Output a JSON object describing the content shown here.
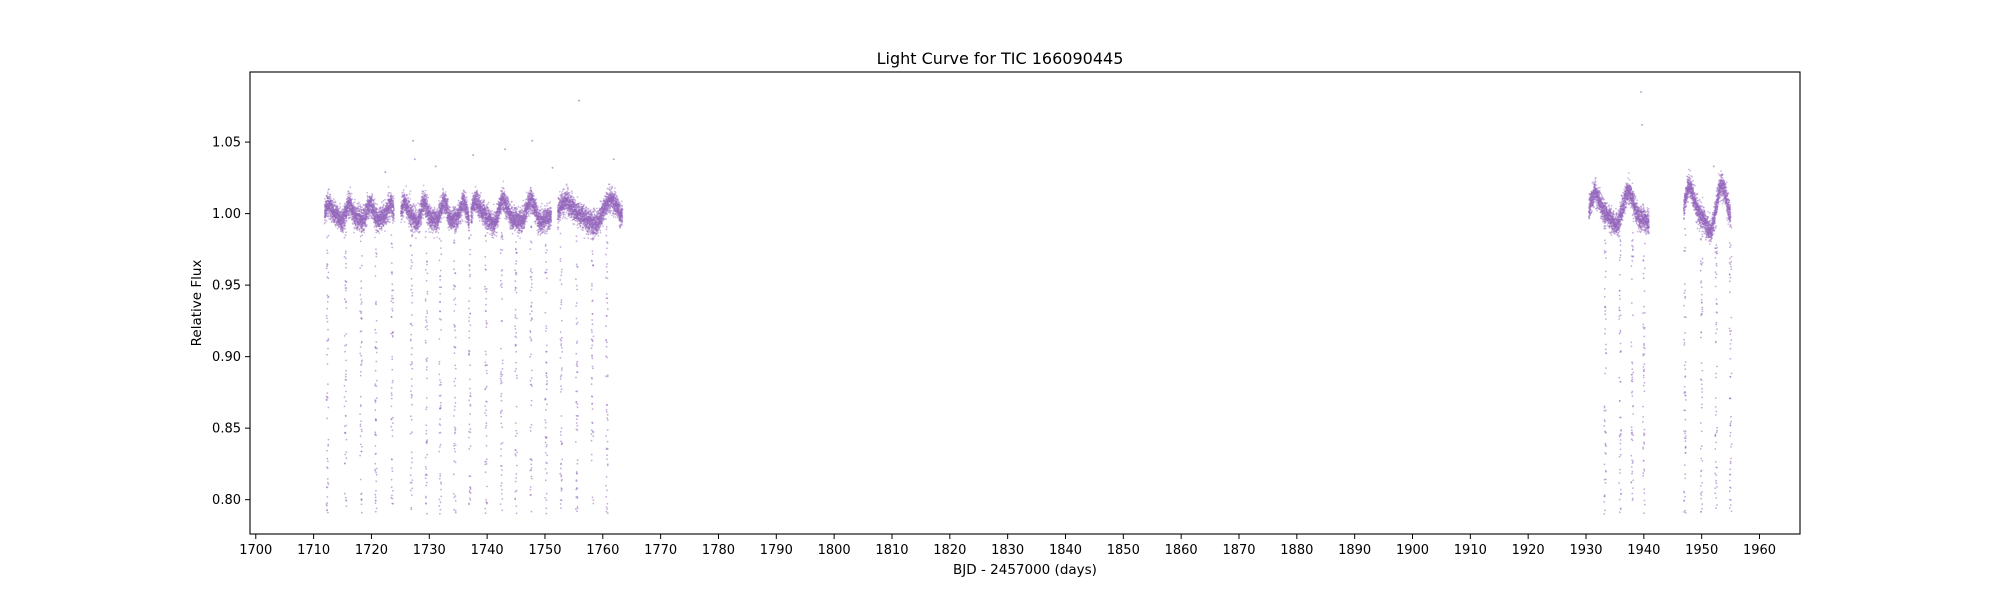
{
  "chart_data": {
    "type": "scatter",
    "title": "Light Curve for TIC 166090445",
    "xlabel": "BJD - 2457000 (days)",
    "ylabel": "Relative Flux",
    "xlim": [
      1699,
      1967
    ],
    "ylim": [
      0.776,
      1.099
    ],
    "x_ticks": [
      1700,
      1710,
      1720,
      1730,
      1740,
      1750,
      1760,
      1770,
      1780,
      1790,
      1800,
      1810,
      1820,
      1830,
      1840,
      1850,
      1860,
      1870,
      1880,
      1890,
      1900,
      1910,
      1920,
      1930,
      1940,
      1950,
      1960
    ],
    "x_tick_labels": [
      "1700",
      "1710",
      "1720",
      "1730",
      "1740",
      "1750",
      "1760",
      "1770",
      "1780",
      "1790",
      "1800",
      "1810",
      "1820",
      "1830",
      "1840",
      "1850",
      "1860",
      "1870",
      "1880",
      "1890",
      "1900",
      "1910",
      "1920",
      "1930",
      "1940",
      "1950",
      "1960"
    ],
    "y_ticks": [
      0.8,
      0.85,
      0.9,
      0.95,
      1.0,
      1.05
    ],
    "y_tick_labels": [
      "0.80",
      "0.85",
      "0.90",
      "0.95",
      "1.00",
      "1.05"
    ],
    "grid": false,
    "legend": "none",
    "marker_color": "#9467bd",
    "segments": [
      {
        "x_start": 1711.9,
        "x_end": 1723.9,
        "baseline": 1.0,
        "amplitude": 0.005,
        "period": 3.5,
        "noise": 0.004
      },
      {
        "x_start": 1725.1,
        "x_end": 1736.9,
        "baseline": 1.0,
        "amplitude": 0.006,
        "period": 3.3,
        "noise": 0.004
      },
      {
        "x_start": 1737.2,
        "x_end": 1751.1,
        "baseline": 1.0,
        "amplitude": 0.007,
        "period": 4.6,
        "noise": 0.004
      },
      {
        "x_start": 1752.2,
        "x_end": 1763.4,
        "baseline": 1.0,
        "amplitude": 0.007,
        "period": 7.5,
        "noise": 0.004
      },
      {
        "x_start": 1930.5,
        "x_end": 1940.9,
        "baseline": 1.002,
        "amplitude": 0.01,
        "period": 5.6,
        "noise": 0.004
      },
      {
        "x_start": 1946.9,
        "x_end": 1955.0,
        "baseline": 1.002,
        "amplitude": 0.014,
        "period": 5.4,
        "noise": 0.004
      }
    ],
    "transit_times": [
      1712.4,
      1715.5,
      1718.2,
      1720.8,
      1723.6,
      1726.9,
      1729.5,
      1731.9,
      1734.4,
      1737.0,
      1739.8,
      1742.5,
      1745.0,
      1747.6,
      1750.2,
      1752.8,
      1755.5,
      1758.2,
      1760.7,
      1933.3,
      1935.9,
      1938.0,
      1940.0,
      1947.1,
      1950.0,
      1952.5,
      1955.0
    ],
    "transit_depth_min": 0.79,
    "outliers": [
      {
        "x": 1727.2,
        "y": 1.051
      },
      {
        "x": 1727.5,
        "y": 1.038
      },
      {
        "x": 1722.4,
        "y": 1.029
      },
      {
        "x": 1731.1,
        "y": 1.033
      },
      {
        "x": 1737.6,
        "y": 1.041
      },
      {
        "x": 1743.1,
        "y": 1.045
      },
      {
        "x": 1747.8,
        "y": 1.051
      },
      {
        "x": 1751.3,
        "y": 1.032
      },
      {
        "x": 1755.9,
        "y": 1.079
      },
      {
        "x": 1761.9,
        "y": 1.038
      },
      {
        "x": 1939.5,
        "y": 1.085
      },
      {
        "x": 1939.7,
        "y": 1.062
      },
      {
        "x": 1952.1,
        "y": 1.033
      }
    ]
  }
}
